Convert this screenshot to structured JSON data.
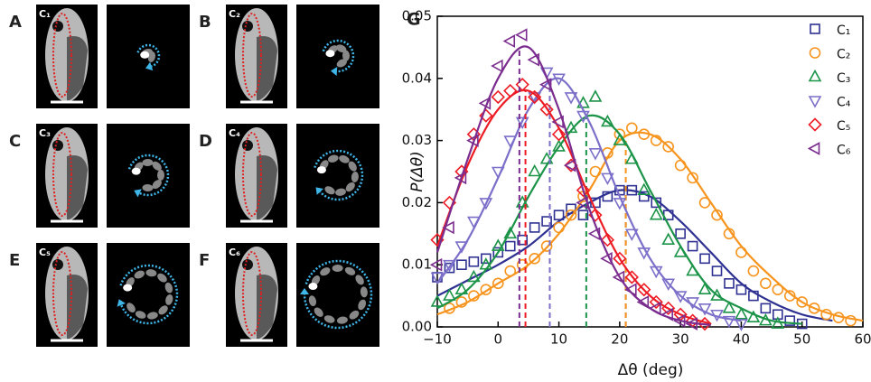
{
  "panels": [
    {
      "letter": "A",
      "label": "C₁"
    },
    {
      "letter": "B",
      "label": "C₂"
    },
    {
      "letter": "C",
      "label": "C₃"
    },
    {
      "letter": "D",
      "label": "C₄"
    },
    {
      "letter": "E",
      "label": "C₅"
    },
    {
      "letter": "F",
      "label": "C₆"
    }
  ],
  "chart_data": {
    "type": "scatter",
    "panel_letter": "G",
    "xlabel": "Δθ (deg)",
    "ylabel": "P(Δθ)",
    "xlim": [
      -10,
      60
    ],
    "ylim": [
      0,
      0.05
    ],
    "xticks": [
      {
        "value": -10,
        "label": "−10"
      },
      0,
      10,
      20,
      30,
      40,
      50,
      60
    ],
    "yticks": [
      {
        "value": 0,
        "label": "0.00"
      },
      0.01,
      0.02,
      0.03,
      0.04,
      0.05
    ],
    "legend": "top-right",
    "series": [
      {
        "name": "C₁",
        "color": "#2e3192",
        "marker": "square",
        "x": [
          -10,
          -8,
          -6,
          -4,
          -2,
          0,
          2,
          4,
          6,
          8,
          10,
          12,
          14,
          16,
          18,
          20,
          22,
          24,
          26,
          28,
          30,
          32,
          34,
          36,
          38,
          40,
          42,
          44,
          46,
          48,
          50
        ],
        "values": [
          0.008,
          0.0095,
          0.01,
          0.0105,
          0.011,
          0.012,
          0.013,
          0.014,
          0.016,
          0.017,
          0.018,
          0.019,
          0.018,
          0.02,
          0.021,
          0.022,
          0.022,
          0.021,
          0.02,
          0.018,
          0.015,
          0.013,
          0.011,
          0.009,
          0.007,
          0.006,
          0.005,
          0.003,
          0.002,
          0.001,
          0.0005
        ],
        "fit": {
          "x": [
            -10,
            -5,
            0,
            5,
            10,
            15,
            20,
            25,
            30,
            35,
            40,
            45,
            50,
            55
          ],
          "values": [
            0.005,
            0.0075,
            0.01,
            0.013,
            0.017,
            0.02,
            0.022,
            0.021,
            0.017,
            0.012,
            0.007,
            0.004,
            0.002,
            0.001
          ]
        },
        "peak": {
          "x": 21,
          "value": 0.022
        }
      },
      {
        "name": "C₂",
        "color": "#f7941d",
        "marker": "circle",
        "x": [
          -8,
          -6,
          -4,
          -2,
          0,
          2,
          4,
          6,
          8,
          10,
          12,
          14,
          16,
          18,
          20,
          22,
          24,
          26,
          28,
          30,
          32,
          34,
          36,
          38,
          40,
          42,
          44,
          46,
          48,
          50,
          52,
          54,
          56,
          58
        ],
        "values": [
          0.003,
          0.004,
          0.005,
          0.006,
          0.007,
          0.009,
          0.01,
          0.011,
          0.013,
          0.016,
          0.018,
          0.021,
          0.025,
          0.028,
          0.031,
          0.032,
          0.031,
          0.03,
          0.029,
          0.026,
          0.024,
          0.02,
          0.018,
          0.015,
          0.012,
          0.009,
          0.007,
          0.006,
          0.005,
          0.004,
          0.003,
          0.002,
          0.0015,
          0.001
        ],
        "fit": {
          "x": [
            -10,
            -5,
            0,
            5,
            10,
            15,
            20,
            25,
            30,
            35,
            40,
            45,
            50,
            55,
            60
          ],
          "values": [
            0.002,
            0.004,
            0.007,
            0.01,
            0.015,
            0.022,
            0.03,
            0.031,
            0.027,
            0.02,
            0.013,
            0.008,
            0.004,
            0.002,
            0.001
          ]
        },
        "peak": {
          "x": 21,
          "value": 0.03
        }
      },
      {
        "name": "C₃",
        "color": "#1b9448",
        "marker": "triangle-up",
        "x": [
          -10,
          -8,
          -6,
          -4,
          -2,
          0,
          2,
          4,
          6,
          8,
          10,
          12,
          14,
          16,
          18,
          20,
          22,
          24,
          26,
          28,
          30,
          32,
          34,
          36,
          38,
          40,
          42,
          44,
          46
        ],
        "values": [
          0.004,
          0.005,
          0.006,
          0.008,
          0.01,
          0.013,
          0.015,
          0.02,
          0.025,
          0.027,
          0.029,
          0.032,
          0.036,
          0.037,
          0.033,
          0.03,
          0.027,
          0.022,
          0.018,
          0.014,
          0.012,
          0.009,
          0.006,
          0.005,
          0.003,
          0.002,
          0.0015,
          0.001,
          0.0005
        ],
        "fit": {
          "x": [
            -10,
            -5,
            0,
            5,
            10,
            15,
            20,
            25,
            30,
            35,
            40,
            45,
            50
          ],
          "values": [
            0.003,
            0.006,
            0.012,
            0.021,
            0.029,
            0.034,
            0.031,
            0.022,
            0.013,
            0.006,
            0.003,
            0.001,
            0.0005
          ]
        },
        "peak": {
          "x": 14.5,
          "value": 0.034
        }
      },
      {
        "name": "C₄",
        "color": "#7b6fc9",
        "marker": "triangle-down",
        "x": [
          -10,
          -8,
          -6,
          -4,
          -2,
          0,
          2,
          4,
          6,
          8,
          10,
          12,
          14,
          16,
          18,
          20,
          22,
          24,
          26,
          28,
          30,
          32,
          34,
          36,
          38,
          40
        ],
        "values": [
          0.008,
          0.01,
          0.013,
          0.017,
          0.02,
          0.025,
          0.03,
          0.033,
          0.037,
          0.041,
          0.04,
          0.037,
          0.034,
          0.028,
          0.024,
          0.02,
          0.015,
          0.012,
          0.009,
          0.007,
          0.005,
          0.004,
          0.003,
          0.002,
          0.001,
          0.0005
        ],
        "fit": {
          "x": [
            -10,
            -5,
            0,
            5,
            10,
            15,
            20,
            25,
            30,
            35,
            40
          ],
          "values": [
            0.007,
            0.014,
            0.024,
            0.035,
            0.04,
            0.033,
            0.021,
            0.011,
            0.005,
            0.002,
            0.001
          ]
        },
        "peak": {
          "x": 8.5,
          "value": 0.04
        }
      },
      {
        "name": "C₅",
        "color": "#ed1c24",
        "marker": "diamond",
        "x": [
          -10,
          -8,
          -6,
          -4,
          -2,
          0,
          2,
          4,
          6,
          8,
          10,
          12,
          14,
          16,
          18,
          20,
          22,
          24,
          26,
          28,
          30,
          32,
          34
        ],
        "values": [
          0.014,
          0.02,
          0.025,
          0.031,
          0.034,
          0.037,
          0.038,
          0.039,
          0.037,
          0.035,
          0.031,
          0.026,
          0.022,
          0.018,
          0.014,
          0.011,
          0.008,
          0.006,
          0.004,
          0.003,
          0.002,
          0.001,
          0.0005
        ],
        "fit": {
          "x": [
            -10,
            -5,
            0,
            5,
            10,
            15,
            20,
            25,
            30,
            35
          ],
          "values": [
            0.013,
            0.026,
            0.035,
            0.038,
            0.032,
            0.021,
            0.011,
            0.005,
            0.002,
            0.0005
          ]
        },
        "peak": {
          "x": 4.5,
          "value": 0.038
        }
      },
      {
        "name": "C₆",
        "color": "#7b2c8f",
        "marker": "triangle-left",
        "x": [
          -10,
          -8,
          -6,
          -4,
          -2,
          0,
          2,
          4,
          6,
          8,
          10,
          12,
          14,
          16,
          18,
          20,
          22,
          24,
          26,
          28,
          30,
          32
        ],
        "values": [
          0.01,
          0.016,
          0.024,
          0.03,
          0.036,
          0.042,
          0.046,
          0.047,
          0.043,
          0.039,
          0.033,
          0.026,
          0.02,
          0.015,
          0.011,
          0.008,
          0.006,
          0.004,
          0.003,
          0.002,
          0.001,
          0.0005
        ],
        "fit": {
          "x": [
            -10,
            -5,
            0,
            5,
            10,
            15,
            20,
            25,
            30,
            35
          ],
          "values": [
            0.012,
            0.027,
            0.04,
            0.045,
            0.035,
            0.019,
            0.008,
            0.003,
            0.001,
            0.0003
          ]
        },
        "peak": {
          "x": 3.5,
          "value": 0.045
        }
      }
    ]
  }
}
